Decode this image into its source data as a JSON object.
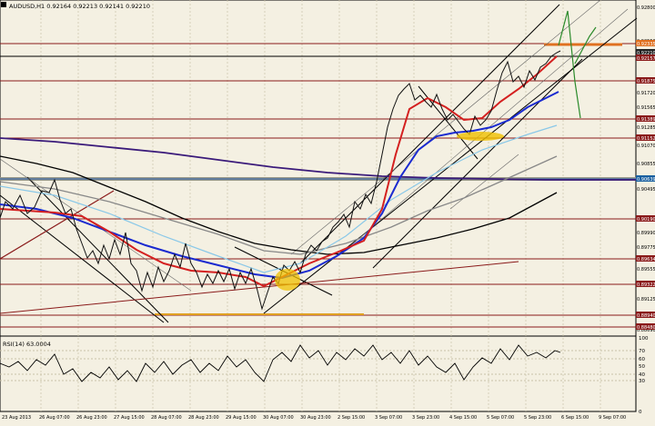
{
  "header": {
    "symbol_text": "AUDUSD,H1  0.92164 0.92213 0.92141 0.92210"
  },
  "price_axis": {
    "labels": [
      "0.92800",
      "0.92550",
      "0.92335",
      "0.92210",
      "0.92157",
      "0.91875",
      "0.91720",
      "0.91565",
      "0.91389",
      "0.91285",
      "0.91152",
      "0.91070",
      "0.90855",
      "0.90639",
      "0.90495",
      "0.90190",
      "0.89990",
      "0.89775",
      "0.89634",
      "0.89555",
      "0.89322",
      "0.89125",
      "0.88940",
      "0.88690",
      "0.88480"
    ],
    "highlighted": [
      "0.92335",
      "0.92210",
      "0.92157",
      "0.91875",
      "0.91389",
      "0.91152",
      "0.90639",
      "0.90190",
      "0.89634",
      "0.89322",
      "0.88940",
      "0.88480"
    ]
  },
  "rsi": {
    "label": "RSI(14) 63.0004",
    "levels": [
      "100",
      "70",
      "60",
      "50",
      "40",
      "30",
      "0"
    ]
  },
  "time_axis": {
    "labels": [
      "23 Aug 2013",
      "26 Aug 07:00",
      "26 Aug 23:00",
      "27 Aug 15:00",
      "28 Aug 07:00",
      "28 Aug 23:00",
      "29 Aug 15:00",
      "30 Aug 07:00",
      "30 Aug 23:00",
      "2 Sep 15:00",
      "3 Sep 07:00",
      "3 Sep 23:00",
      "4 Sep 15:00",
      "5 Sep 07:00",
      "5 Sep 23:00",
      "6 Sep 15:00",
      "9 Sep 07:00"
    ]
  },
  "colors": {
    "background": "#f4f0e2",
    "bull_candle": "#000000",
    "ema_fast": "#d42020",
    "ema_mid": "#1a2ad0",
    "ema_slow": "#000000",
    "ema_long": "#3a1a7a",
    "level_line": "#8a1a1a",
    "highlight_bar": "#e07020",
    "current_price_tag": "#1a60a0"
  }
}
